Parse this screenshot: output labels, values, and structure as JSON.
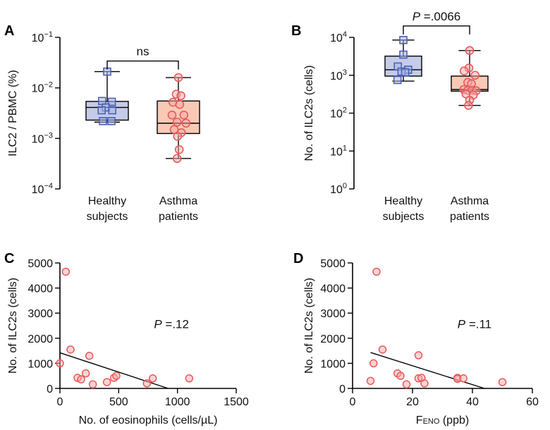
{
  "chart_data": [
    {
      "id": "A",
      "type": "boxplot",
      "panel_label": "A",
      "ylabel": "ILC2 / PBMC (%)",
      "yscale": "log",
      "ylim": [
        0.0001,
        0.1
      ],
      "yticks": [
        {
          "value": 0.1,
          "base": "10",
          "exp": "−1"
        },
        {
          "value": 0.01,
          "base": "10",
          "exp": "−2"
        },
        {
          "value": 0.001,
          "base": "10",
          "exp": "−3"
        },
        {
          "value": 0.0001,
          "base": "10",
          "exp": "−4"
        }
      ],
      "categories": [
        {
          "line1": "Healthy",
          "line2": "subjects"
        },
        {
          "line1": "Asthma",
          "line2": "patients"
        }
      ],
      "significance": {
        "label": "ns",
        "from": 0,
        "to": 1,
        "y": 0.034
      },
      "series": [
        {
          "marker": "square",
          "box_fill": "#c5cbe8",
          "marker_color": "#4a63b8",
          "box": {
            "min": 0.0021,
            "q1": 0.0023,
            "median": 0.0041,
            "q3": 0.0054,
            "max": 0.021
          },
          "points": [
            {
              "dx": 0.0,
              "y": 0.021
            },
            {
              "dx": -0.12,
              "y": 0.0055
            },
            {
              "dx": 0.11,
              "y": 0.0053
            },
            {
              "dx": -0.03,
              "y": 0.0041
            },
            {
              "dx": -0.13,
              "y": 0.0036
            },
            {
              "dx": 0.12,
              "y": 0.0036
            },
            {
              "dx": -0.1,
              "y": 0.0022
            },
            {
              "dx": 0.1,
              "y": 0.0022
            }
          ]
        },
        {
          "marker": "circle",
          "box_fill": "#f9c9b5",
          "marker_color": "#e85a5a",
          "box": {
            "min": 0.0004,
            "q1": 0.00125,
            "median": 0.002,
            "q3": 0.0055,
            "max": 0.016
          },
          "points": [
            {
              "dx": 0.0,
              "y": 0.016
            },
            {
              "dx": -0.05,
              "y": 0.0075
            },
            {
              "dx": 0.06,
              "y": 0.007
            },
            {
              "dx": -0.13,
              "y": 0.0052
            },
            {
              "dx": 0.03,
              "y": 0.0047
            },
            {
              "dx": -0.15,
              "y": 0.0029
            },
            {
              "dx": 0.13,
              "y": 0.0029
            },
            {
              "dx": -0.03,
              "y": 0.0021
            },
            {
              "dx": 0.18,
              "y": 0.002
            },
            {
              "dx": -0.1,
              "y": 0.0015
            },
            {
              "dx": 0.07,
              "y": 0.0013
            },
            {
              "dx": -0.02,
              "y": 0.0011
            },
            {
              "dx": 0.02,
              "y": 0.0006
            },
            {
              "dx": -0.03,
              "y": 0.0004
            }
          ]
        }
      ]
    },
    {
      "id": "B",
      "type": "boxplot",
      "panel_label": "B",
      "ylabel": "No. of ILC2s (cells)",
      "yscale": "log",
      "ylim": [
        1,
        10000
      ],
      "yticks": [
        {
          "value": 10000,
          "base": "10",
          "exp": "4"
        },
        {
          "value": 1000,
          "base": "10",
          "exp": "3"
        },
        {
          "value": 100,
          "base": "10",
          "exp": "2"
        },
        {
          "value": 10,
          "base": "10",
          "exp": "1"
        },
        {
          "value": 1,
          "base": "10",
          "exp": "0"
        }
      ],
      "categories": [
        {
          "line1": "Healthy",
          "line2": "subjects"
        },
        {
          "line1": "Asthma",
          "line2": "patients"
        }
      ],
      "significance": {
        "label_prefix": "P",
        "label_value": " =.0066",
        "from": 0,
        "to": 1,
        "y": 20000
      },
      "series": [
        {
          "marker": "square",
          "box_fill": "#c5cbe8",
          "marker_color": "#4a63b8",
          "box": {
            "min": 700,
            "q1": 950,
            "median": 1400,
            "q3": 3200,
            "max": 8500
          },
          "points": [
            {
              "dx": 0.0,
              "y": 8500
            },
            {
              "dx": 0.0,
              "y": 3500
            },
            {
              "dx": -0.15,
              "y": 1700
            },
            {
              "dx": 0.13,
              "y": 1400
            },
            {
              "dx": -0.05,
              "y": 1250
            },
            {
              "dx": 0.05,
              "y": 1200
            },
            {
              "dx": -0.16,
              "y": 750
            }
          ]
        },
        {
          "marker": "circle",
          "box_fill": "#f9c9b5",
          "marker_color": "#e85a5a",
          "box": {
            "min": 160,
            "q1": 380,
            "median": 420,
            "q3": 950,
            "max": 4500
          },
          "points": [
            {
              "dx": 0.0,
              "y": 4500
            },
            {
              "dx": -0.02,
              "y": 1550
            },
            {
              "dx": -0.15,
              "y": 1300
            },
            {
              "dx": 0.15,
              "y": 1000
            },
            {
              "dx": -0.05,
              "y": 650
            },
            {
              "dx": 0.05,
              "y": 600
            },
            {
              "dx": -0.16,
              "y": 420
            },
            {
              "dx": -0.05,
              "y": 400
            },
            {
              "dx": 0.07,
              "y": 400
            },
            {
              "dx": 0.18,
              "y": 390
            },
            {
              "dx": -0.1,
              "y": 320
            },
            {
              "dx": 0.1,
              "y": 300
            },
            {
              "dx": 0.0,
              "y": 220
            },
            {
              "dx": -0.03,
              "y": 160
            }
          ]
        }
      ]
    },
    {
      "id": "C",
      "type": "scatter",
      "panel_label": "C",
      "xlabel": "No. of eosinophils (cells/µL)",
      "ylabel": "No. of ILC2s (cells)",
      "xlim": [
        0,
        1500
      ],
      "ylim": [
        0,
        5000
      ],
      "xticks": [
        0,
        500,
        1000,
        1500
      ],
      "yticks": [
        0,
        1000,
        2000,
        3000,
        4000,
        5000
      ],
      "p_prefix": "P",
      "p_value": " =.12",
      "p_pos": {
        "x": 800,
        "y": 2400
      },
      "marker_color": "#e85a5a",
      "points": [
        {
          "x": 0,
          "y": 1000
        },
        {
          "x": 50,
          "y": 4650
        },
        {
          "x": 90,
          "y": 1550
        },
        {
          "x": 150,
          "y": 420
        },
        {
          "x": 180,
          "y": 360
        },
        {
          "x": 220,
          "y": 600
        },
        {
          "x": 250,
          "y": 1300
        },
        {
          "x": 280,
          "y": 160
        },
        {
          "x": 400,
          "y": 250
        },
        {
          "x": 460,
          "y": 420
        },
        {
          "x": 480,
          "y": 500
        },
        {
          "x": 740,
          "y": 200
        },
        {
          "x": 790,
          "y": 400
        },
        {
          "x": 1100,
          "y": 400
        }
      ],
      "fit": {
        "x1": 0,
        "y1": 1420,
        "x2": 920,
        "y2": 0
      }
    },
    {
      "id": "D",
      "type": "scatter",
      "panel_label": "D",
      "xlabel_main": "F",
      "xlabel_sub": "ENO",
      "xlabel_rest": " (ppb)",
      "ylabel": "No. of ILC2s (cells)",
      "xlim": [
        0,
        60
      ],
      "ylim": [
        0,
        5000
      ],
      "xticks": [
        0,
        20,
        40,
        60
      ],
      "yticks": [
        0,
        1000,
        2000,
        3000,
        4000,
        5000
      ],
      "p_prefix": "P",
      "p_value": " =.11",
      "p_pos": {
        "x": 35,
        "y": 2400
      },
      "marker_color": "#e85a5a",
      "points": [
        {
          "x": 6,
          "y": 300
        },
        {
          "x": 7,
          "y": 1000
        },
        {
          "x": 8,
          "y": 4650
        },
        {
          "x": 10,
          "y": 1550
        },
        {
          "x": 15,
          "y": 600
        },
        {
          "x": 16,
          "y": 500
        },
        {
          "x": 18,
          "y": 160
        },
        {
          "x": 22,
          "y": 1320
        },
        {
          "x": 22,
          "y": 400
        },
        {
          "x": 23,
          "y": 420
        },
        {
          "x": 24,
          "y": 200
        },
        {
          "x": 35,
          "y": 420
        },
        {
          "x": 35,
          "y": 380
        },
        {
          "x": 37,
          "y": 400
        },
        {
          "x": 50,
          "y": 250
        }
      ],
      "fit": {
        "x1": 6,
        "y1": 1430,
        "x2": 44,
        "y2": 0
      }
    }
  ]
}
